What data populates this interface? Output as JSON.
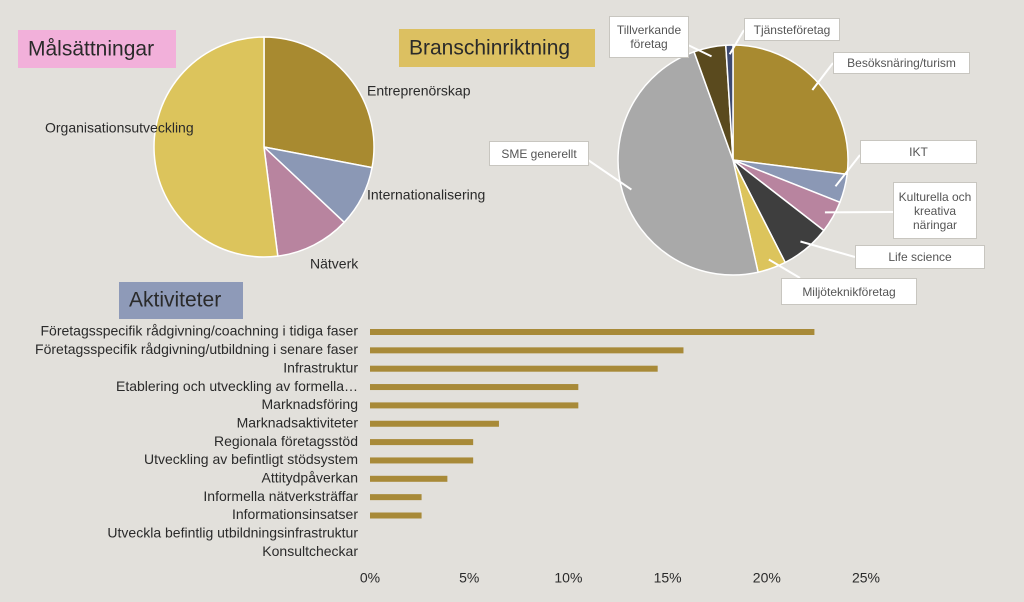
{
  "chart_data": [
    {
      "type": "pie",
      "title": "Målsättningar",
      "categories": [
        "Entreprenörskap",
        "Internationalisering",
        "Nätverk",
        "Organisationsutveckling"
      ],
      "values": [
        28,
        9,
        11,
        52
      ],
      "colors": [
        "#a88a30",
        "#8b98b5",
        "#b8849f",
        "#dcc45c"
      ]
    },
    {
      "type": "pie",
      "title": "Branschinriktning",
      "categories": [
        "Besöksnäring/turism",
        "IKT",
        "Kulturella och kreativa näringar",
        "Life science",
        "Miljöteknikföretag",
        "SME generellt",
        "Tillverkande företag",
        "Tjänsteföretag"
      ],
      "values": [
        27,
        4,
        4.5,
        7,
        4,
        48,
        4.5,
        1
      ],
      "colors": [
        "#a88a30",
        "#8b98b5",
        "#b8849f",
        "#3e3e3e",
        "#dcc45c",
        "#a9a9a9",
        "#5a4a1e",
        "#3e4a70"
      ]
    },
    {
      "type": "bar",
      "orientation": "horizontal",
      "title": "Aktiviteter",
      "categories": [
        "Företagsspecifik rådgivning/coachning i tidiga faser",
        "Företagsspecifik rådgivning/utbildning i senare faser",
        "Infrastruktur",
        "Etablering och utveckling av formella…",
        "Marknadsföring",
        "Marknadsaktiviteter",
        "Regionala företagsstöd",
        "Utveckling av befintligt stödsystem",
        "Attitydpåverkan",
        "Informella nätverksträffar",
        "Informationsinsatser",
        "Utveckla befintlig utbildningsinfrastruktur",
        "Konsultcheckar"
      ],
      "values": [
        22.4,
        15.8,
        14.5,
        10.5,
        10.5,
        6.5,
        5.2,
        5.2,
        3.9,
        2.6,
        2.6,
        0,
        0
      ],
      "color": "#a88a38",
      "xlim": [
        0,
        25
      ],
      "xticks": [
        {
          "value": 0,
          "label": "0%"
        },
        {
          "value": 5,
          "label": "5%"
        },
        {
          "value": 10,
          "label": "10%"
        },
        {
          "value": 15,
          "label": "15%"
        },
        {
          "value": 20,
          "label": "20%"
        },
        {
          "value": 25,
          "label": "25%"
        }
      ]
    }
  ]
}
